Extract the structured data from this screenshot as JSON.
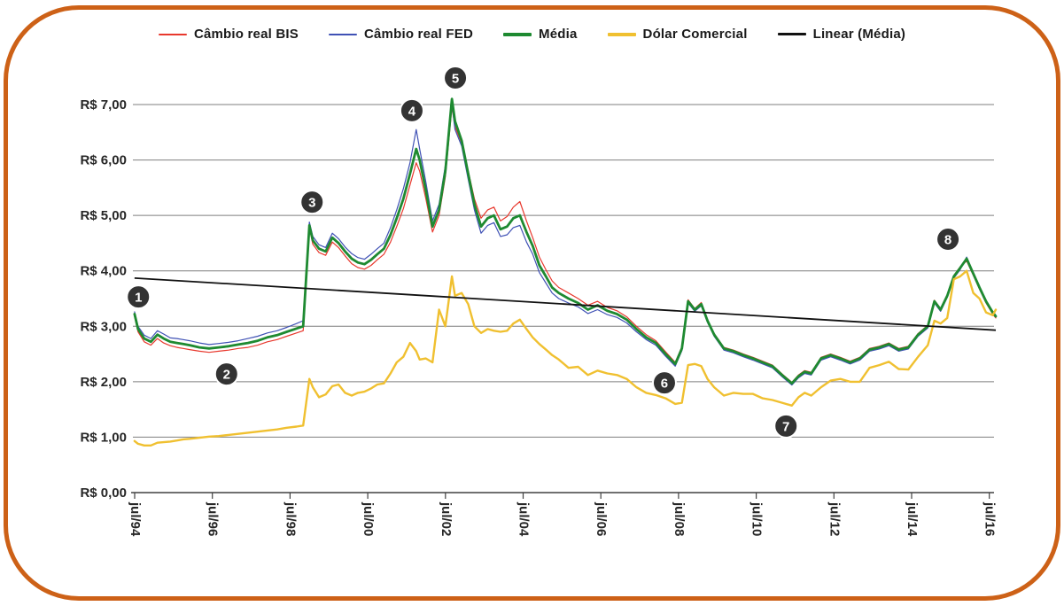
{
  "frame": {
    "border_color": "#cd6117",
    "background": "#ffffff"
  },
  "legend": {
    "items": [
      {
        "label": "Câmbio real BIS",
        "color": "#e8382d",
        "thickness": 2
      },
      {
        "label": "Câmbio real FED",
        "color": "#3f51b5",
        "thickness": 2
      },
      {
        "label": "Média",
        "color": "#1e8a31",
        "thickness": 4
      },
      {
        "label": "Dólar Comercial",
        "color": "#f0c030",
        "thickness": 4
      },
      {
        "label": "Linear (Média)",
        "color": "#111111",
        "thickness": 3
      }
    ]
  },
  "chart_data": {
    "type": "line",
    "title": "",
    "xlabel": "",
    "ylabel": "",
    "grid": true,
    "legend_position": "top",
    "ylim": [
      0,
      7.45
    ],
    "y_ticks": [
      "R$ 7,00",
      "R$ 6,00",
      "R$ 5,00",
      "R$ 4,00",
      "R$ 3,00",
      "R$ 2,00",
      "R$ 1,00",
      "R$ 0,00"
    ],
    "y_tick_values": [
      7,
      6,
      5,
      4,
      3,
      2,
      1,
      0
    ],
    "x_ticks": [
      {
        "label": "jul/94",
        "year": 1994.5833
      },
      {
        "label": "jul/96",
        "year": 1996.5833
      },
      {
        "label": "jul/98",
        "year": 1998.5833
      },
      {
        "label": "jul/00",
        "year": 2000.5833
      },
      {
        "label": "jul/02",
        "year": 2002.5833
      },
      {
        "label": "jul/04",
        "year": 2004.5833
      },
      {
        "label": "jul/06",
        "year": 2006.5833
      },
      {
        "label": "jul/08",
        "year": 2008.5833
      },
      {
        "label": "jul/10",
        "year": 2010.5833
      },
      {
        "label": "jul/12",
        "year": 2012.5833
      },
      {
        "label": "jul/14",
        "year": 2014.5833
      },
      {
        "label": "jul/16",
        "year": 2016.5833
      }
    ],
    "x": [
      1994.58,
      1994.67,
      1994.83,
      1995.0,
      1995.17,
      1995.33,
      1995.5,
      1995.67,
      1995.83,
      1996.0,
      1996.25,
      1996.5,
      1996.75,
      1997.0,
      1997.25,
      1997.5,
      1997.75,
      1998.0,
      1998.25,
      1998.5,
      1998.75,
      1998.92,
      1999.08,
      1999.17,
      1999.33,
      1999.5,
      1999.67,
      1999.83,
      2000.0,
      2000.17,
      2000.33,
      2000.5,
      2000.67,
      2000.83,
      2001.0,
      2001.17,
      2001.33,
      2001.5,
      2001.67,
      2001.83,
      2001.92,
      2002.08,
      2002.25,
      2002.42,
      2002.58,
      2002.75,
      2002.83,
      2003.0,
      2003.17,
      2003.33,
      2003.5,
      2003.67,
      2003.83,
      2004.0,
      2004.17,
      2004.33,
      2004.5,
      2004.67,
      2004.83,
      2005.0,
      2005.17,
      2005.33,
      2005.5,
      2005.75,
      2006.0,
      2006.25,
      2006.5,
      2006.75,
      2007.0,
      2007.25,
      2007.5,
      2007.75,
      2008.0,
      2008.25,
      2008.5,
      2008.67,
      2008.83,
      2009.0,
      2009.17,
      2009.33,
      2009.5,
      2009.75,
      2010.0,
      2010.25,
      2010.5,
      2010.75,
      2011.0,
      2011.25,
      2011.5,
      2011.67,
      2011.83,
      2012.0,
      2012.25,
      2012.5,
      2012.75,
      2013.0,
      2013.25,
      2013.5,
      2013.75,
      2014.0,
      2014.25,
      2014.5,
      2014.75,
      2015.0,
      2015.17,
      2015.33,
      2015.5,
      2015.67,
      2015.83,
      2016.0,
      2016.17,
      2016.33,
      2016.5,
      2016.67,
      2016.75
    ],
    "series": [
      {
        "name": "Câmbio real BIS",
        "color": "#e8382d",
        "width": 1.2,
        "values": [
          3.18,
          2.9,
          2.72,
          2.66,
          2.78,
          2.7,
          2.65,
          2.62,
          2.6,
          2.58,
          2.55,
          2.53,
          2.55,
          2.57,
          2.6,
          2.62,
          2.66,
          2.72,
          2.76,
          2.82,
          2.88,
          2.92,
          4.78,
          4.48,
          4.33,
          4.28,
          4.52,
          4.42,
          4.27,
          4.13,
          4.06,
          4.03,
          4.1,
          4.2,
          4.3,
          4.52,
          4.8,
          5.12,
          5.55,
          5.95,
          5.8,
          5.3,
          4.7,
          5.0,
          5.7,
          6.95,
          6.6,
          6.3,
          5.8,
          5.3,
          4.95,
          5.1,
          5.15,
          4.9,
          4.98,
          5.15,
          5.25,
          4.9,
          4.6,
          4.25,
          4.02,
          3.82,
          3.7,
          3.6,
          3.5,
          3.38,
          3.45,
          3.34,
          3.28,
          3.17,
          3.0,
          2.85,
          2.74,
          2.54,
          2.35,
          2.63,
          3.48,
          3.32,
          3.43,
          3.12,
          2.87,
          2.62,
          2.57,
          2.5,
          2.44,
          2.37,
          2.3,
          2.14,
          1.99,
          2.12,
          2.2,
          2.17,
          2.44,
          2.5,
          2.44,
          2.37,
          2.44,
          2.6,
          2.64,
          2.7,
          2.6,
          2.64,
          2.87,
          3.02,
          3.47,
          3.32,
          3.57,
          3.92,
          4.07,
          4.18,
          3.92,
          3.67,
          3.42,
          3.22,
          3.15
        ]
      },
      {
        "name": "Câmbio real FED",
        "color": "#3f51b5",
        "width": 1.2,
        "values": [
          3.26,
          3.0,
          2.84,
          2.78,
          2.92,
          2.86,
          2.79,
          2.78,
          2.76,
          2.74,
          2.7,
          2.67,
          2.69,
          2.71,
          2.74,
          2.78,
          2.82,
          2.88,
          2.92,
          2.98,
          3.05,
          3.1,
          4.88,
          4.62,
          4.47,
          4.42,
          4.68,
          4.58,
          4.43,
          4.31,
          4.24,
          4.21,
          4.3,
          4.4,
          4.5,
          4.78,
          5.1,
          5.48,
          5.95,
          6.55,
          6.2,
          5.6,
          4.9,
          5.2,
          5.9,
          7.0,
          6.55,
          6.25,
          5.65,
          5.1,
          4.68,
          4.82,
          4.87,
          4.62,
          4.65,
          4.78,
          4.82,
          4.52,
          4.3,
          3.97,
          3.78,
          3.6,
          3.5,
          3.42,
          3.35,
          3.23,
          3.3,
          3.21,
          3.16,
          3.06,
          2.9,
          2.76,
          2.66,
          2.46,
          2.28,
          2.56,
          3.42,
          3.27,
          3.37,
          3.07,
          2.82,
          2.57,
          2.52,
          2.45,
          2.39,
          2.32,
          2.25,
          2.09,
          1.94,
          2.07,
          2.15,
          2.12,
          2.39,
          2.45,
          2.39,
          2.32,
          2.39,
          2.55,
          2.59,
          2.65,
          2.55,
          2.59,
          2.82,
          2.97,
          3.42,
          3.27,
          3.52,
          3.87,
          4.02,
          4.25,
          3.97,
          3.72,
          3.47,
          3.27,
          3.2
        ]
      },
      {
        "name": "Média",
        "color": "#1e8a31",
        "width": 2.8,
        "values": [
          3.22,
          2.95,
          2.78,
          2.72,
          2.85,
          2.78,
          2.72,
          2.7,
          2.68,
          2.66,
          2.62,
          2.6,
          2.62,
          2.64,
          2.67,
          2.7,
          2.74,
          2.8,
          2.84,
          2.9,
          2.96,
          3.0,
          4.82,
          4.55,
          4.4,
          4.35,
          4.6,
          4.5,
          4.35,
          4.22,
          4.15,
          4.12,
          4.2,
          4.3,
          4.4,
          4.65,
          4.95,
          5.3,
          5.75,
          6.2,
          6.0,
          5.45,
          4.8,
          5.1,
          5.8,
          7.1,
          6.7,
          6.35,
          5.75,
          5.2,
          4.8,
          4.95,
          5.0,
          4.75,
          4.8,
          4.95,
          5.0,
          4.7,
          4.45,
          4.1,
          3.9,
          3.7,
          3.6,
          3.5,
          3.42,
          3.3,
          3.38,
          3.28,
          3.22,
          3.12,
          2.95,
          2.8,
          2.7,
          2.5,
          2.32,
          2.6,
          3.45,
          3.3,
          3.4,
          3.1,
          2.85,
          2.6,
          2.55,
          2.48,
          2.42,
          2.35,
          2.28,
          2.12,
          1.97,
          2.1,
          2.18,
          2.15,
          2.42,
          2.48,
          2.42,
          2.35,
          2.42,
          2.58,
          2.62,
          2.68,
          2.58,
          2.62,
          2.85,
          3.0,
          3.45,
          3.3,
          3.55,
          3.9,
          4.05,
          4.22,
          3.95,
          3.7,
          3.45,
          3.25,
          3.18
        ]
      },
      {
        "name": "Dólar Comercial",
        "color": "#f0c030",
        "width": 2.4,
        "values": [
          0.93,
          0.88,
          0.85,
          0.85,
          0.9,
          0.91,
          0.92,
          0.94,
          0.96,
          0.97,
          0.99,
          1.01,
          1.02,
          1.04,
          1.06,
          1.08,
          1.1,
          1.12,
          1.14,
          1.17,
          1.19,
          1.21,
          2.05,
          1.9,
          1.72,
          1.77,
          1.92,
          1.95,
          1.8,
          1.75,
          1.8,
          1.82,
          1.88,
          1.95,
          1.97,
          2.15,
          2.35,
          2.45,
          2.7,
          2.55,
          2.4,
          2.42,
          2.35,
          3.3,
          3.0,
          3.9,
          3.55,
          3.6,
          3.4,
          3.0,
          2.88,
          2.95,
          2.92,
          2.9,
          2.92,
          3.05,
          3.12,
          2.95,
          2.8,
          2.68,
          2.58,
          2.48,
          2.4,
          2.25,
          2.27,
          2.12,
          2.2,
          2.15,
          2.12,
          2.05,
          1.9,
          1.8,
          1.76,
          1.7,
          1.6,
          1.62,
          2.3,
          2.32,
          2.28,
          2.05,
          1.9,
          1.75,
          1.8,
          1.78,
          1.78,
          1.7,
          1.67,
          1.62,
          1.57,
          1.72,
          1.8,
          1.75,
          1.9,
          2.02,
          2.05,
          2.0,
          2.0,
          2.25,
          2.3,
          2.36,
          2.23,
          2.22,
          2.45,
          2.66,
          3.1,
          3.05,
          3.15,
          3.85,
          3.9,
          4.0,
          3.6,
          3.5,
          3.25,
          3.2,
          3.3
        ]
      }
    ],
    "trendline": {
      "name": "Linear (Média)",
      "color": "#111111",
      "width": 1.8,
      "x": [
        1994.58,
        2016.75
      ],
      "values": [
        3.87,
        2.93
      ]
    },
    "annotations": [
      {
        "label": "1",
        "year": 1994.68,
        "value": 3.53
      },
      {
        "label": "2",
        "year": 1996.95,
        "value": 2.14
      },
      {
        "label": "3",
        "year": 1999.15,
        "value": 5.24
      },
      {
        "label": "4",
        "year": 2001.72,
        "value": 6.89
      },
      {
        "label": "5",
        "year": 2002.84,
        "value": 7.48
      },
      {
        "label": "6",
        "year": 2008.22,
        "value": 1.98
      },
      {
        "label": "7",
        "year": 2011.35,
        "value": 1.2
      },
      {
        "label": "8",
        "year": 2015.52,
        "value": 4.57
      }
    ],
    "annotation_style": {
      "fill": "#333333",
      "text_color": "#ffffff"
    },
    "axis_colors": {
      "grid": "#7f7f7f",
      "axis": "#404040",
      "tick_label": "#262626"
    }
  }
}
